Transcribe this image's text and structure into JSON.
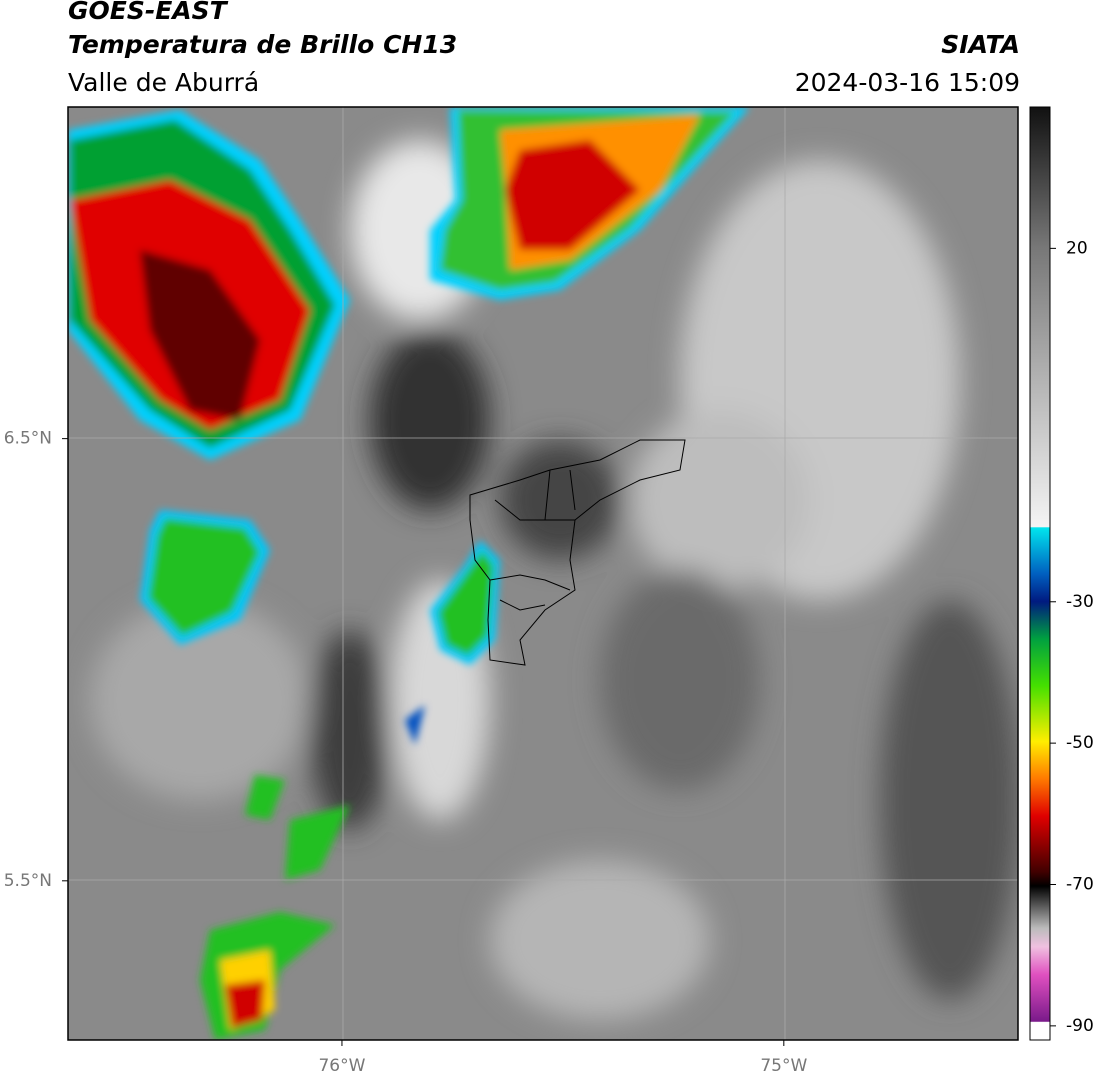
{
  "header": {
    "title": "GOES-EAST",
    "subtitle": "Temperatura de Brillo CH13",
    "region": "Valle de Aburrá",
    "source": "SIATA",
    "datetime": "2024-03-16 15:09"
  },
  "map": {
    "lonlim": [
      -76.62,
      -74.47
    ],
    "latlim": [
      5.14,
      7.25
    ],
    "lon_ticks": [
      {
        "value": -76,
        "label": "76°W"
      },
      {
        "value": -75,
        "label": "75°W"
      }
    ],
    "lat_ticks": [
      {
        "value": 6.5,
        "label": "6.5°N"
      },
      {
        "value": 5.5,
        "label": "5.5°N"
      }
    ]
  },
  "colorbar": {
    "lim": [
      -92,
      40
    ],
    "ticks": [
      20,
      -30,
      -50,
      -70,
      -90
    ]
  }
}
